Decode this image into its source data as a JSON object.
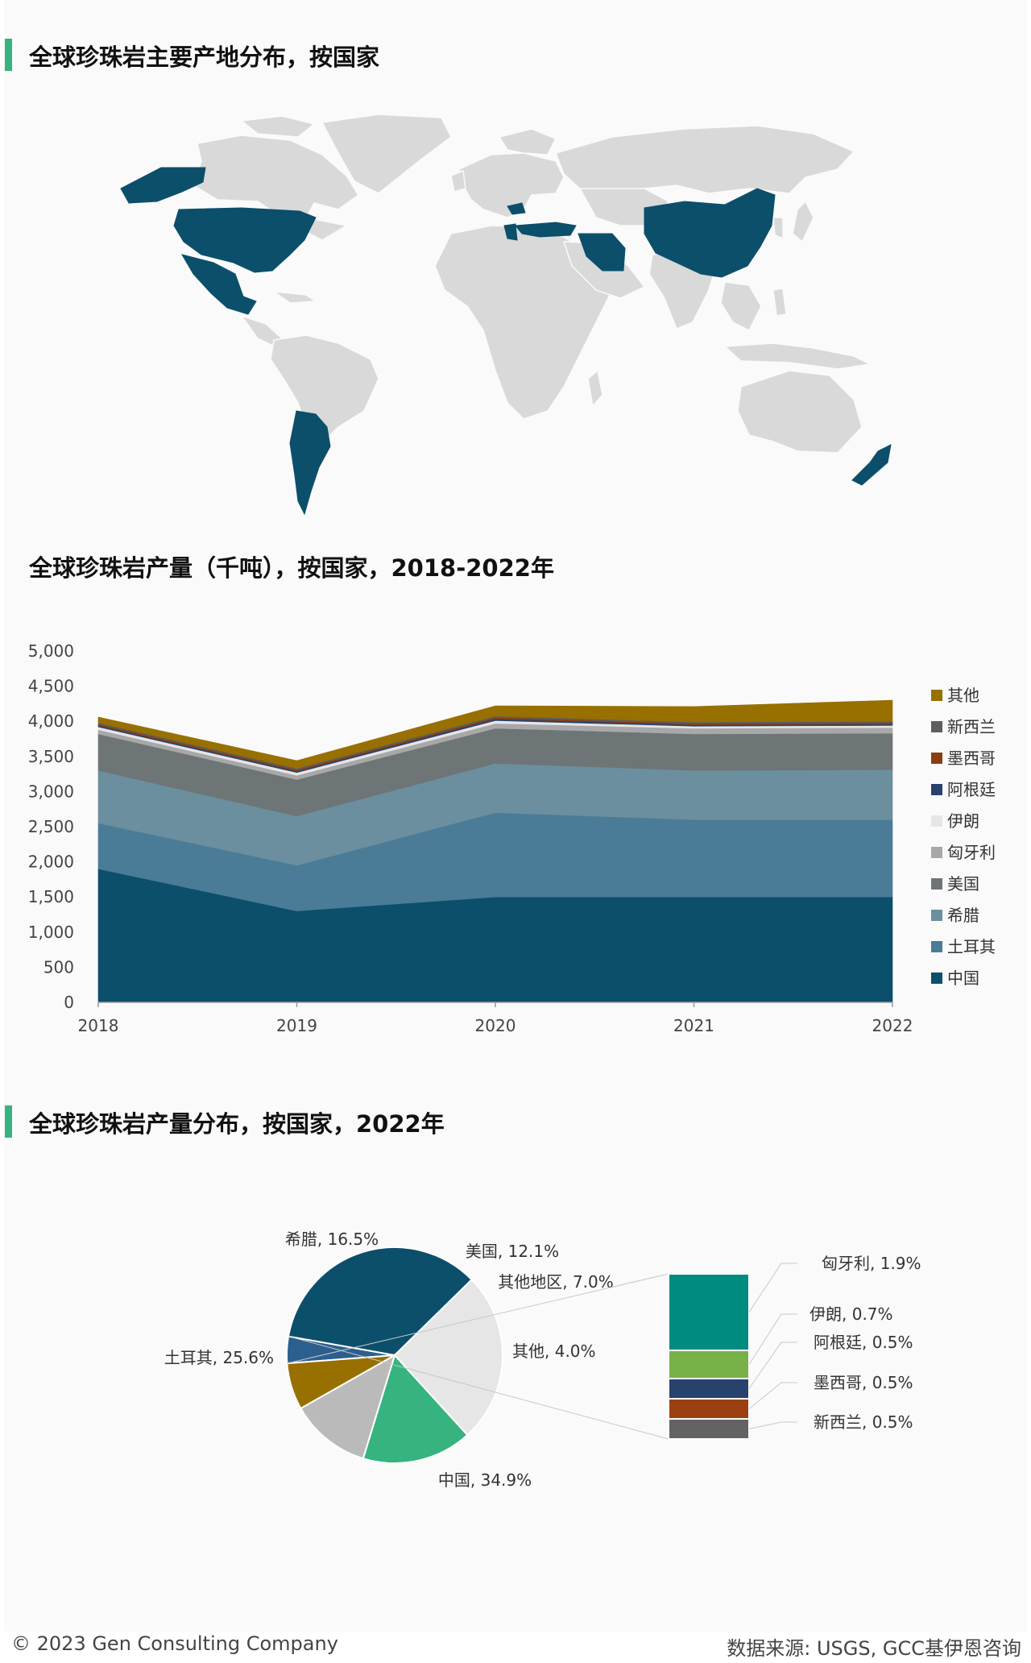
{
  "titles": {
    "map": "全球珍珠岩主要产地分布，按国家",
    "area": "全球珍珠岩产量（千吨），按国家，2018-2022年",
    "pie": "全球珍珠岩产量分布，按国家，2022年"
  },
  "footer": {
    "copyright": "© 2023 Gen Consulting Company",
    "source": "数据来源: USGS, GCC基伊恩咨询"
  },
  "colors": {
    "accent": "#36b37e",
    "map_highlight": "#0c4f6b",
    "map_land": "#d9d9d9"
  },
  "map": {
    "highlighted_countries": [
      "美国",
      "墨西哥",
      "阿根廷",
      "土耳其",
      "希腊",
      "匈牙利",
      "伊朗",
      "中国",
      "新西兰",
      "阿拉斯加"
    ]
  },
  "chart_data": [
    {
      "type": "area",
      "stacked": true,
      "x": [
        2018,
        2019,
        2020,
        2021,
        2022
      ],
      "ylim": [
        0,
        5000
      ],
      "yticks": [
        0,
        500,
        1000,
        1500,
        2000,
        2500,
        3000,
        3500,
        4000,
        4500,
        5000
      ],
      "series": [
        {
          "name": "中国",
          "color": "#0c4f6b",
          "values": [
            1900,
            1300,
            1500,
            1500,
            1500
          ]
        },
        {
          "name": "土耳其",
          "color": "#4a7c97",
          "values": [
            650,
            650,
            1200,
            1100,
            1100
          ]
        },
        {
          "name": "希腊",
          "color": "#6b8f9e",
          "values": [
            750,
            700,
            700,
            700,
            710
          ]
        },
        {
          "name": "美国",
          "color": "#6e7577",
          "values": [
            520,
            520,
            500,
            520,
            520
          ]
        },
        {
          "name": "匈牙利",
          "color": "#a8a8a8",
          "values": [
            60,
            60,
            70,
            80,
            80
          ]
        },
        {
          "name": "伊朗",
          "color": "#e6e6e6",
          "values": [
            40,
            40,
            40,
            30,
            30
          ]
        },
        {
          "name": "阿根廷",
          "color": "#28426e",
          "values": [
            20,
            20,
            25,
            20,
            20
          ]
        },
        {
          "name": "墨西哥",
          "color": "#8a3f12",
          "values": [
            20,
            20,
            20,
            20,
            20
          ]
        },
        {
          "name": "新西兰",
          "color": "#5e5e5e",
          "values": [
            20,
            20,
            20,
            20,
            20
          ]
        },
        {
          "name": "其他",
          "color": "#987000",
          "values": [
            80,
            110,
            145,
            220,
            300
          ]
        }
      ],
      "legend_position": "right"
    },
    {
      "type": "pie",
      "slices": [
        {
          "label": "中国, 34.9%",
          "name": "中国",
          "value": 34.9,
          "color": "#0c4f6b"
        },
        {
          "label": "土耳其, 25.6%",
          "name": "土耳其",
          "value": 25.6,
          "color": "#e6e6e6"
        },
        {
          "label": "希腊, 16.5%",
          "name": "希腊",
          "value": 16.5,
          "color": "#36b37e"
        },
        {
          "label": "美国, 12.1%",
          "name": "美国",
          "value": 12.1,
          "color": "#bababa"
        },
        {
          "label": "其他地区, 7.0%",
          "name": "其他地区",
          "value": 7.0,
          "color": "#987000"
        },
        {
          "label": "其他, 4.0%",
          "name": "其他",
          "value": 4.0,
          "color": "#2b5f8e"
        }
      ],
      "breakdown": [
        {
          "label": "匈牙利, 1.9%",
          "value": 1.9,
          "color": "#008b80"
        },
        {
          "label": "伊朗, 0.7%",
          "value": 0.7,
          "color": "#78b04a"
        },
        {
          "label": "阿根廷, 0.5%",
          "value": 0.5,
          "color": "#28426e"
        },
        {
          "label": "墨西哥, 0.5%",
          "value": 0.5,
          "color": "#9b4111"
        },
        {
          "label": "新西兰, 0.5%",
          "value": 0.5,
          "color": "#636363"
        }
      ]
    }
  ]
}
